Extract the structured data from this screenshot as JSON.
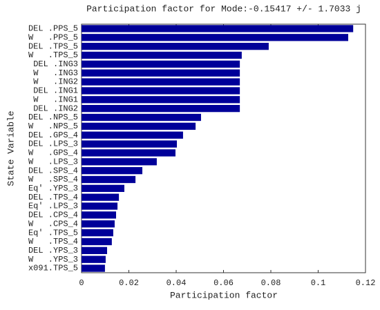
{
  "chart_data": {
    "type": "barh",
    "title": "Participation factor for Mode:-0.15417 +/- 1.7033 j",
    "xlabel": "Participation factor",
    "ylabel": "State Variable",
    "categories": [
      "DEL .PPS_5",
      "W   .PPS_5",
      "DEL .TPS_5",
      "W   .TPS_5",
      "DEL .ING3",
      "W   .ING3",
      "W   .ING2",
      "DEL .ING1",
      "W   .ING1",
      "DEL .ING2",
      "DEL .NPS_5",
      "W   .NPS_5",
      "DEL .GPS_4",
      "DEL .LPS_3",
      "W   .GPS_4",
      "W   .LPS_3",
      "DEL .SPS_4",
      "W   .SPS_4",
      "Eq' .YPS_3",
      "DEL .TPS_4",
      "Eq' .LPS_3",
      "DEL .CPS_4",
      "W   .CPS_4",
      "Eq' .TPS_5",
      "W   .TPS_4",
      "DEL .YPS_3",
      "W   .YPS_3",
      "x091.TPS_5"
    ],
    "values": [
      0.1148,
      0.1127,
      0.0791,
      0.0677,
      0.0669,
      0.0669,
      0.0669,
      0.0669,
      0.0669,
      0.0669,
      0.0505,
      0.0482,
      0.0429,
      0.0403,
      0.0397,
      0.0318,
      0.0257,
      0.0228,
      0.0181,
      0.0158,
      0.0152,
      0.0146,
      0.014,
      0.0134,
      0.0128,
      0.0108,
      0.0102,
      0.0099
    ],
    "color": "#000099",
    "xlim": [
      0,
      0.12
    ],
    "xticks": [
      0,
      0.02,
      0.04,
      0.06,
      0.08,
      0.1,
      0.12
    ],
    "grid": false
  }
}
